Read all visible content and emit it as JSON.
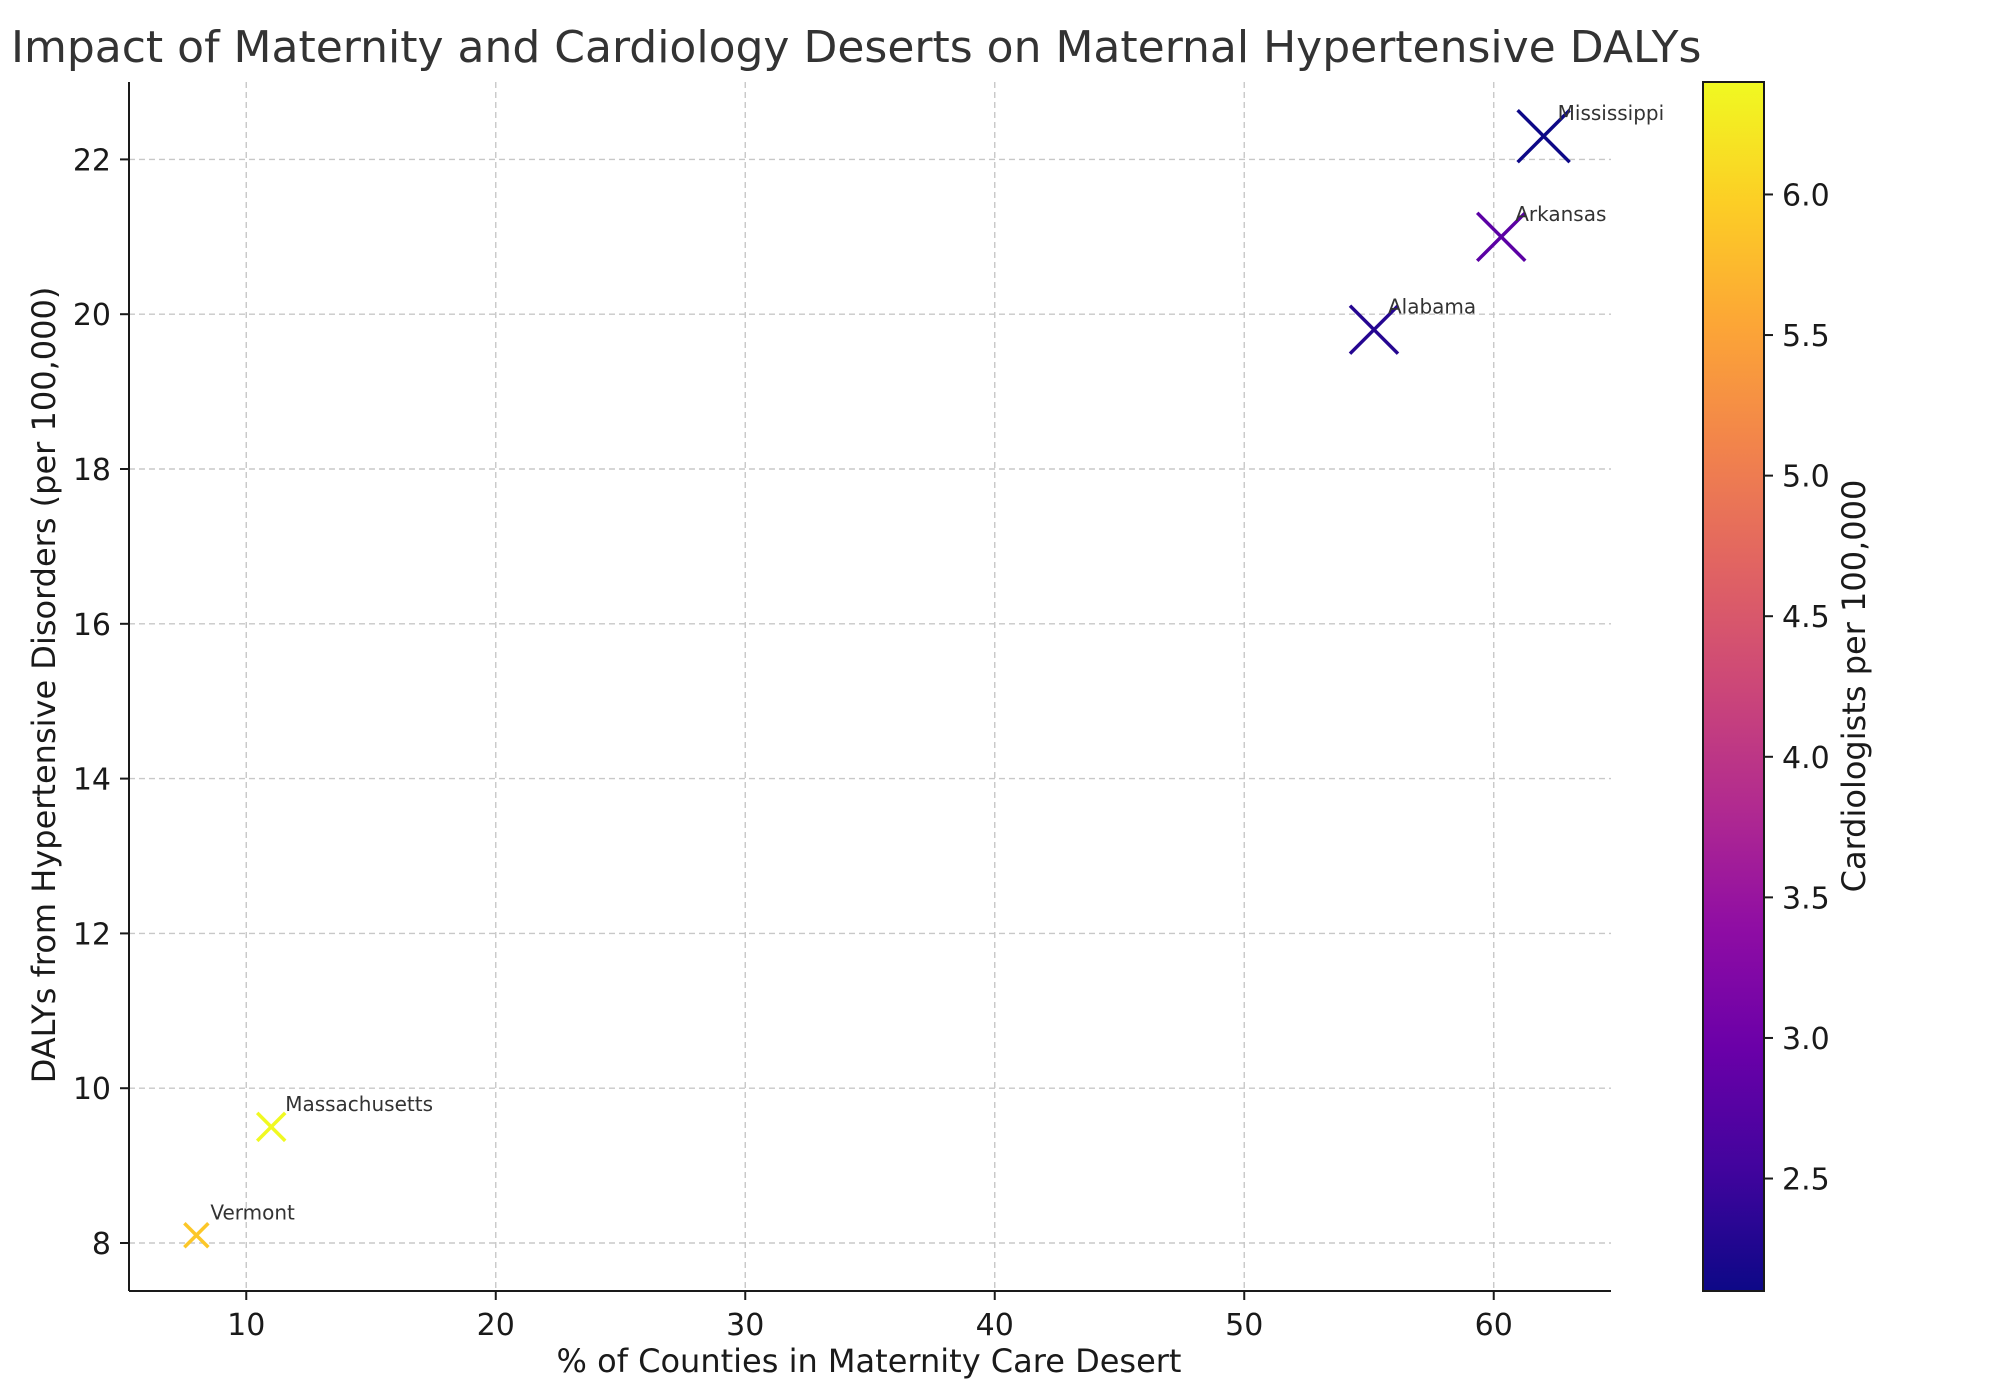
{
  "chart_data": {
    "type": "scatter",
    "title": "Impact of Maternity and Cardiology Deserts on Maternal Hypertensive DALYs",
    "xlabel": "% of Counties in Maternity Care Desert",
    "ylabel": "DALYs from Hypertensive Disorders (per 100,000)",
    "xlim": [
      5.3,
      64.7
    ],
    "ylim": [
      7.38,
      23.0
    ],
    "xticks": [
      10,
      20,
      30,
      40,
      50,
      60
    ],
    "yticks": [
      8,
      10,
      12,
      14,
      16,
      18,
      20,
      22
    ],
    "grid": true,
    "marker": "x",
    "colorbar": {
      "label": "Cardiologists per 100,000",
      "colormap": "plasma",
      "range": [
        2.1,
        6.4
      ],
      "ticks": [
        2.5,
        3.0,
        3.5,
        4.0,
        4.5,
        5.0,
        5.5,
        6.0
      ]
    },
    "points": [
      {
        "label": "Mississippi",
        "x": 62,
        "y": 22.3,
        "color_value": 2.1,
        "size": 26
      },
      {
        "label": "Arkansas",
        "x": 60.3,
        "y": 21.0,
        "color_value": 2.8,
        "size": 24
      },
      {
        "label": "Alabama",
        "x": 55.2,
        "y": 19.8,
        "color_value": 2.3,
        "size": 24
      },
      {
        "label": "Massachusetts",
        "x": 11,
        "y": 9.5,
        "color_value": 6.4,
        "size": 14
      },
      {
        "label": "Vermont",
        "x": 8,
        "y": 8.1,
        "color_value": 5.9,
        "size": 12
      }
    ]
  }
}
